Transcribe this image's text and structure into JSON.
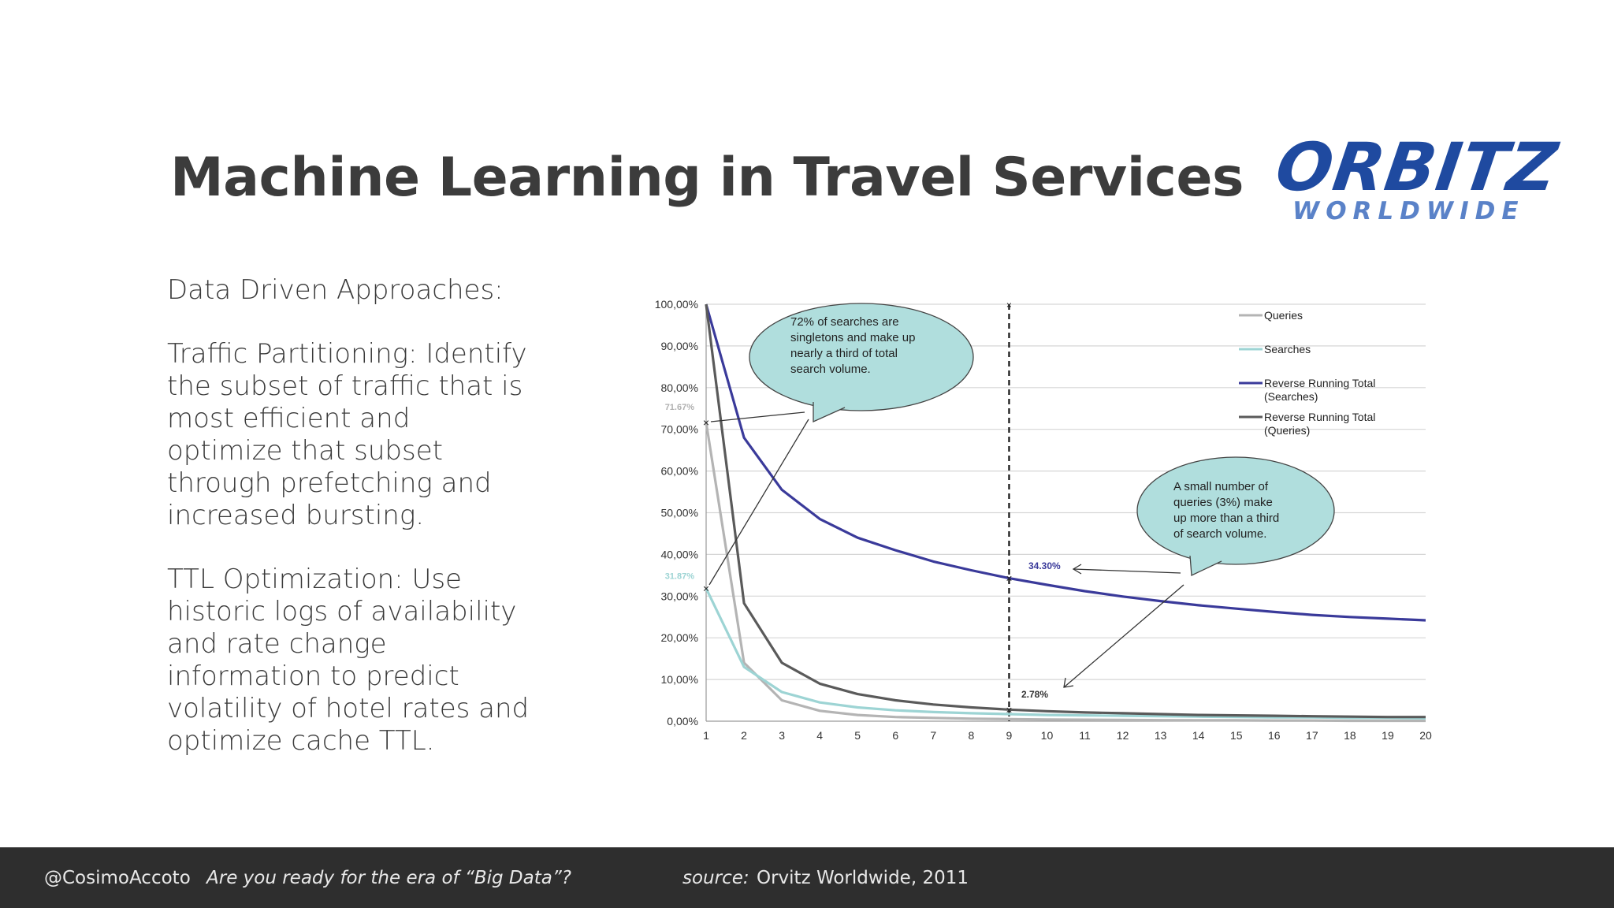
{
  "slide": {
    "title": "Machine Learning in Travel Services",
    "logo_main": "ORBITZ",
    "logo_sub": "WORLDWIDE",
    "bullets": [
      "Data Driven Approaches:",
      "Traffic Partitioning: Identify the subset of traffic that is most efficient and optimize that subset through prefetching and increased bursting.",
      "TTL Optimization: Use historic logs of availability and rate change information to predict volatility of hotel rates and optimize cache TTL."
    ]
  },
  "footer": {
    "handle": "@CosimoAccoto",
    "tagline": "Are you ready for the era of “Big Data”?",
    "source_label": "source:",
    "source_text": "Orvitz Worldwide, 2011"
  },
  "chart_data": {
    "type": "line",
    "x": [
      1,
      2,
      3,
      4,
      5,
      6,
      7,
      8,
      9,
      10,
      11,
      12,
      13,
      14,
      15,
      16,
      17,
      18,
      19,
      20
    ],
    "ylim": [
      0,
      100
    ],
    "yticks": [
      "0,00%",
      "10,00%",
      "20,00%",
      "30,00%",
      "40,00%",
      "50,00%",
      "60,00%",
      "70,00%",
      "80,00%",
      "90,00%",
      "100,00%"
    ],
    "grid": true,
    "legend_position": "top-right",
    "series": [
      {
        "name": "Queries",
        "color": "#b4b4b4",
        "values": [
          71.67,
          14,
          5,
          2.5,
          1.5,
          1,
          0.8,
          0.6,
          0.5,
          0.4,
          0.35,
          0.3,
          0.25,
          0.2,
          0.2,
          0.15,
          0.15,
          0.1,
          0.1,
          0.1
        ]
      },
      {
        "name": "Searches",
        "color": "#9dd4d4",
        "values": [
          31.87,
          13,
          7,
          4.5,
          3.3,
          2.6,
          2.2,
          1.9,
          1.7,
          1.5,
          1.4,
          1.3,
          1.2,
          1.1,
          1.0,
          0.9,
          0.9,
          0.8,
          0.8,
          0.7
        ]
      },
      {
        "name": "Reverse Running Total (Searches)",
        "color": "#3a3a9a",
        "values": [
          100,
          68,
          55.5,
          48.5,
          44,
          41,
          38.3,
          36.2,
          34.3,
          32.7,
          31.2,
          29.9,
          28.8,
          27.8,
          27,
          26.2,
          25.5,
          25,
          24.6,
          24.2
        ]
      },
      {
        "name": "Reverse Running Total (Queries)",
        "color": "#5a5a5a",
        "values": [
          100,
          28.3,
          14,
          9,
          6.5,
          5,
          4,
          3.3,
          2.78,
          2.4,
          2.1,
          1.9,
          1.7,
          1.5,
          1.4,
          1.3,
          1.2,
          1.1,
          1.0,
          1.0
        ]
      }
    ],
    "annotations": {
      "left_label_queries": "71.67%",
      "left_label_searches": "31.87%",
      "point_label_searches": "34.30%",
      "point_label_queries": "2.78%",
      "callout1": [
        "72% of searches are",
        "singletons and make up",
        "nearly a third of total",
        "search volume."
      ],
      "callout2": [
        "A small number of",
        "queries (3%) make",
        "up more than a third",
        "of search volume."
      ]
    }
  }
}
